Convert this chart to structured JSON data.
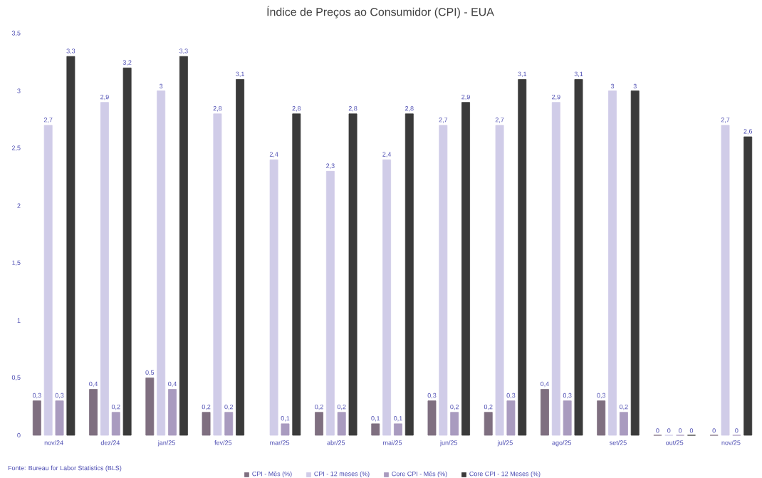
{
  "chart_data": {
    "type": "bar",
    "title": "Índice de Preços ao Consumidor (CPI) - EUA",
    "categories": [
      "nov/24",
      "dez/24",
      "jan/25",
      "fev/25",
      "mar/25",
      "abr/25",
      "mai/25",
      "jun/25",
      "jul/25",
      "ago/25",
      "set/25",
      "out/25",
      "nov/25"
    ],
    "series": [
      {
        "name": "CPI - Mês (%)",
        "color": "#7f6f80",
        "values": [
          0.3,
          0.4,
          0.5,
          0.2,
          null,
          0.2,
          0.1,
          0.3,
          0.2,
          0.4,
          0.3,
          0,
          0
        ],
        "value_labels": [
          "0,3",
          "0,4",
          "0,5",
          "0,2",
          null,
          "0,2",
          "0,1",
          "0,3",
          "0,2",
          "0,4",
          "0,3",
          "0",
          "0"
        ]
      },
      {
        "name": "CPI - 12 meses (%)",
        "color": "#d0cce8",
        "values": [
          2.7,
          2.9,
          3,
          2.8,
          2.4,
          2.3,
          2.4,
          2.7,
          2.7,
          2.9,
          3,
          0,
          2.7
        ],
        "value_labels": [
          "2,7",
          "2,9",
          "3",
          "2,8",
          "2,4",
          "2,3",
          "2,4",
          "2,7",
          "2,7",
          "2,9",
          "3",
          "0",
          "2,7"
        ]
      },
      {
        "name": "Core CPI - Mês (%)",
        "color": "#a99bbf",
        "values": [
          0.3,
          0.2,
          0.4,
          0.2,
          0.1,
          0.2,
          0.1,
          0.2,
          0.3,
          0.3,
          0.2,
          0,
          0
        ],
        "value_labels": [
          "0,3",
          "0,2",
          "0,4",
          "0,2",
          "0,1",
          "0,2",
          "0,1",
          "0,2",
          "0,3",
          "0,3",
          "0,2",
          "0",
          "0"
        ]
      },
      {
        "name": "Core CPI - 12 Meses (%)",
        "color": "#3a3a3a",
        "values": [
          3.3,
          3.2,
          3.3,
          3.1,
          2.8,
          2.8,
          2.8,
          2.9,
          3.1,
          3.1,
          3,
          0,
          2.6
        ],
        "value_labels": [
          "3,3",
          "3,2",
          "3,3",
          "3,1",
          "2,8",
          "2,8",
          "2,8",
          "2,9",
          "3,1",
          "3,1",
          "3",
          "0",
          "2,6"
        ]
      }
    ],
    "ylim": [
      0,
      3.5
    ],
    "yticks": [
      0,
      {
        "value": 0.5,
        "label": "0,5"
      },
      1,
      {
        "value": 1.5,
        "label": "1,5"
      },
      2,
      {
        "value": 2.5,
        "label": "2,5"
      },
      3,
      {
        "value": 3.5,
        "label": "3,5"
      }
    ],
    "grid": false,
    "legend": "bottom",
    "annotations": [
      "Fonte: Bureau for Labor Statistics (BLS)"
    ]
  }
}
